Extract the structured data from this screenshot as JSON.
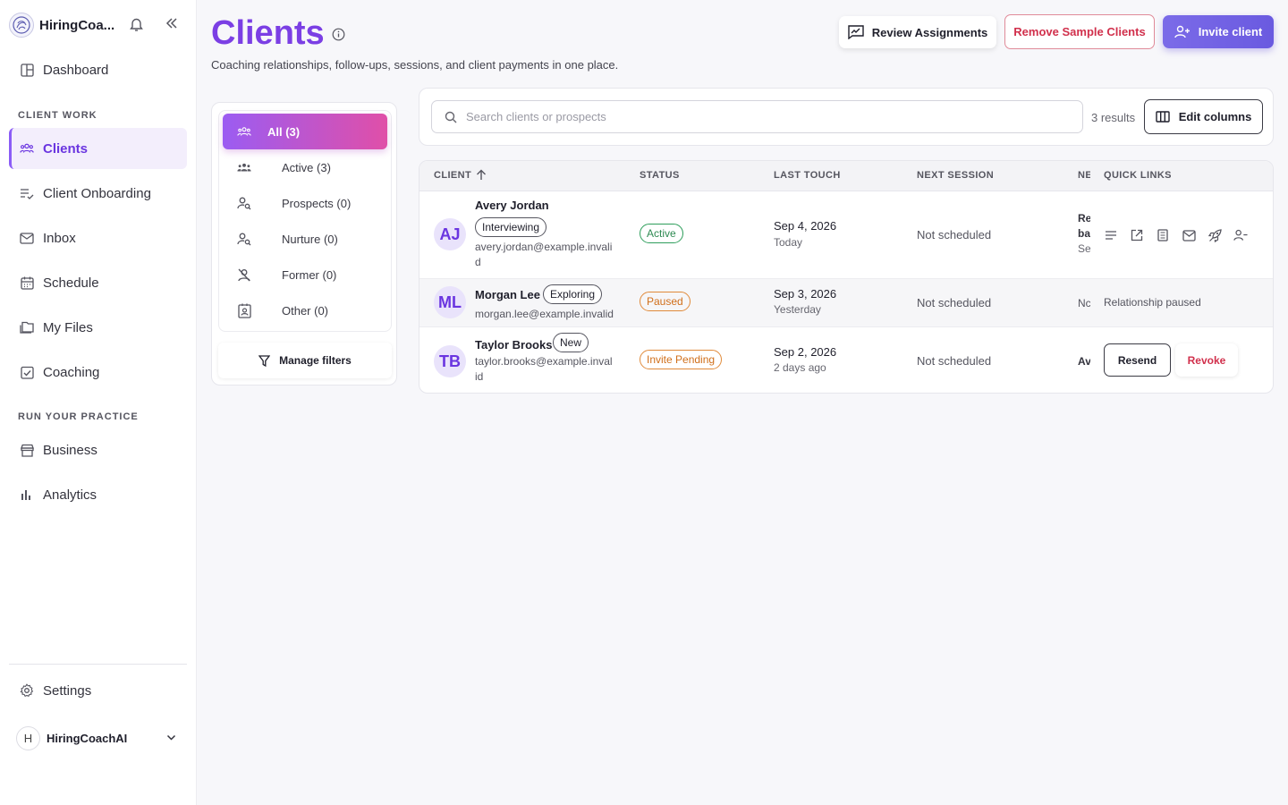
{
  "brand": {
    "name": "HiringCoa..."
  },
  "sidebar": {
    "dashboard": "Dashboard",
    "section_client_work": "CLIENT WORK",
    "items_client": [
      {
        "label": "Clients",
        "icon": "users-icon"
      },
      {
        "label": "Client Onboarding",
        "icon": "list-check-icon"
      },
      {
        "label": "Inbox",
        "icon": "mail-icon"
      },
      {
        "label": "Schedule",
        "icon": "calendar-icon"
      },
      {
        "label": "My Files",
        "icon": "folder-icon"
      },
      {
        "label": "Coaching",
        "icon": "clipboard-check-icon"
      }
    ],
    "section_practice": "RUN YOUR PRACTICE",
    "items_practice": [
      {
        "label": "Business",
        "icon": "store-icon"
      },
      {
        "label": "Analytics",
        "icon": "bar-chart-icon"
      }
    ],
    "settings": "Settings",
    "account_initial": "H",
    "account_name": "HiringCoachAI"
  },
  "header": {
    "title": "Clients",
    "subtitle": "Coaching relationships, follow-ups, sessions, and client payments in one place.",
    "review_label": "Review Assignments",
    "remove_label": "Remove Sample Clients",
    "invite_label": "Invite client"
  },
  "filters": {
    "items": [
      {
        "label": "All (3)",
        "icon": "users-icon"
      },
      {
        "label": "Active (3)",
        "icon": "users-group-icon"
      },
      {
        "label": "Prospects (0)",
        "icon": "user-search-icon"
      },
      {
        "label": "Nurture (0)",
        "icon": "user-search-icon"
      },
      {
        "label": "Former (0)",
        "icon": "user-off-icon"
      },
      {
        "label": "Other (0)",
        "icon": "id-card-icon"
      }
    ],
    "manage_label": "Manage filters"
  },
  "search": {
    "placeholder": "Search clients or prospects",
    "results": "3 results",
    "edit_columns_label": "Edit columns"
  },
  "table": {
    "headers": {
      "client": "CLIENT",
      "status": "STATUS",
      "last_touch": "LAST TOUCH",
      "next_session": "NEXT SESSION",
      "ne": "NE",
      "quick_links": "QUICK LINKS"
    },
    "rows": [
      {
        "initials": "AJ",
        "name": "Avery Jordan",
        "tag": "Interviewing",
        "email": "avery.jordan@example.invalid",
        "status": "Active",
        "last_touch_date": "Sep 4, 2026",
        "last_touch_rel": "Today",
        "next_session": "Not scheduled",
        "ne_lines": [
          "Re",
          "ba",
          "Se"
        ]
      },
      {
        "initials": "ML",
        "name": "Morgan Lee",
        "tag": "Exploring",
        "email": "morgan.lee@example.invalid",
        "status": "Paused",
        "last_touch_date": "Sep 3, 2026",
        "last_touch_rel": "Yesterday",
        "next_session": "Not scheduled",
        "ne": "Nc",
        "quick_note": "Relationship paused"
      },
      {
        "initials": "TB",
        "name": "Taylor Brooks",
        "tag": "New",
        "email": "taylor.brooks@example.invalid",
        "status": "Invite Pending",
        "last_touch_date": "Sep 2, 2026",
        "last_touch_rel": "2 days ago",
        "next_session": "Not scheduled",
        "ne": "Av",
        "resend_label": "Resend",
        "revoke_label": "Revoke"
      }
    ]
  },
  "colors": {
    "accent": "#7b3fe4",
    "danger": "#d1304c",
    "success": "#2e8a52",
    "warning": "#d06f1a"
  }
}
